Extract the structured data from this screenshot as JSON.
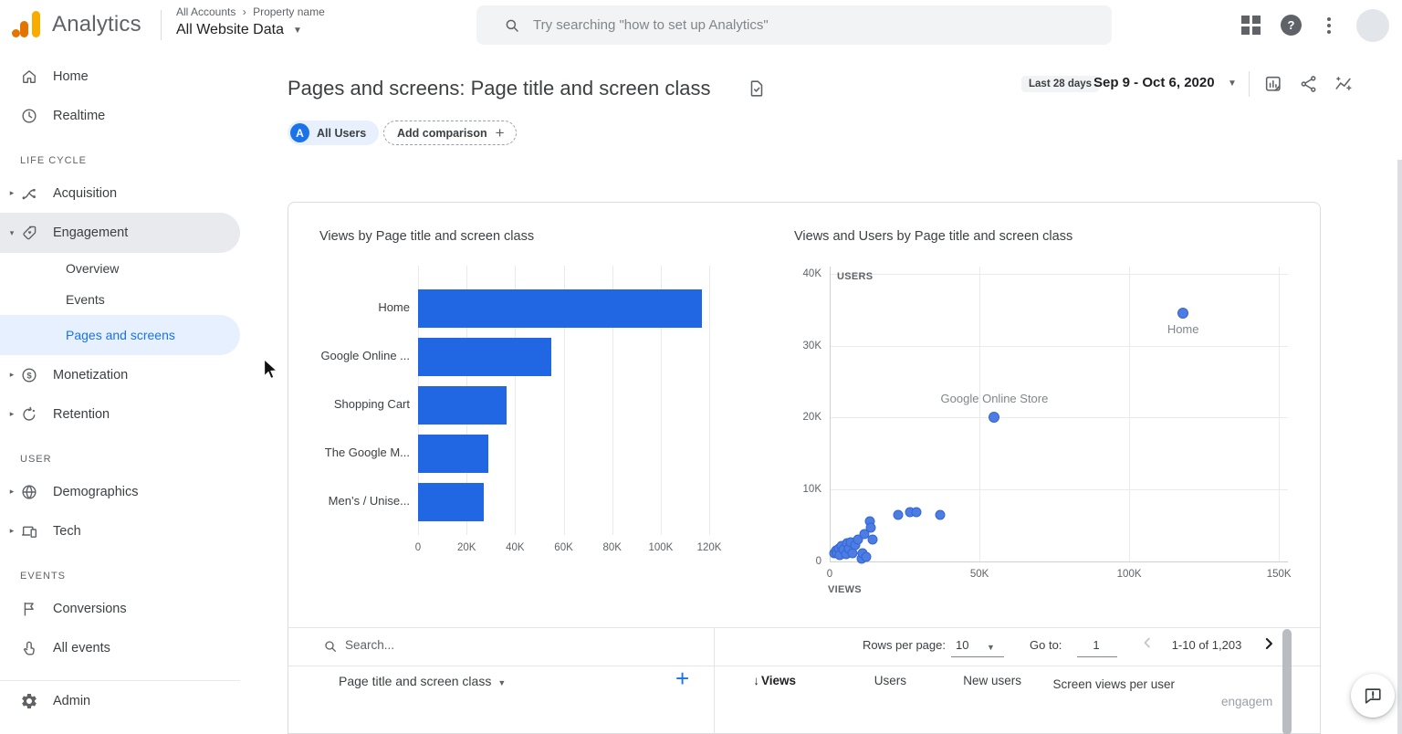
{
  "header": {
    "product": "Analytics",
    "breadcrumb": {
      "account": "All Accounts",
      "separator": "›",
      "property": "Property name"
    },
    "property_selector": "All Website Data",
    "search_placeholder": "Try searching \"how to set up Analytics\""
  },
  "sidebar": {
    "top_items": [
      {
        "label": "Home",
        "icon": "home-icon"
      },
      {
        "label": "Realtime",
        "icon": "clock-icon"
      }
    ],
    "sections": [
      {
        "title": "LIFE CYCLE",
        "items": [
          {
            "label": "Acquisition",
            "icon": "acquisition-icon",
            "arrow": "collapsed"
          },
          {
            "label": "Engagement",
            "icon": "engagement-icon",
            "arrow": "expanded",
            "selected": true,
            "children": [
              {
                "label": "Overview"
              },
              {
                "label": "Events"
              },
              {
                "label": "Pages and screens",
                "selected": true
              }
            ]
          },
          {
            "label": "Monetization",
            "icon": "monetization-icon",
            "arrow": "collapsed"
          },
          {
            "label": "Retention",
            "icon": "retention-icon",
            "arrow": "collapsed"
          }
        ]
      },
      {
        "title": "USER",
        "items": [
          {
            "label": "Demographics",
            "icon": "demographics-icon",
            "arrow": "collapsed"
          },
          {
            "label": "Tech",
            "icon": "tech-icon",
            "arrow": "collapsed"
          }
        ]
      },
      {
        "title": "EVENTS",
        "items": [
          {
            "label": "Conversions",
            "icon": "flag-icon"
          },
          {
            "label": "All events",
            "icon": "touch-icon"
          }
        ]
      }
    ],
    "admin": {
      "label": "Admin",
      "icon": "gear-icon"
    }
  },
  "report": {
    "title": "Pages and screens: Page title and screen class",
    "comparisons": {
      "chip_badge": "A",
      "chip_label": "All Users",
      "add_label": "Add comparison"
    },
    "date": {
      "badge": "Last 28 days",
      "range": "Sep 9 - Oct 6, 2020"
    }
  },
  "chart_data": [
    {
      "type": "bar",
      "orientation": "horizontal",
      "title": "Views by Page title and screen class",
      "categories": [
        "Home",
        "Google Online ...",
        "Shopping Cart",
        "The Google M...",
        "Men’s / Unise..."
      ],
      "values": [
        117000,
        55000,
        36500,
        29000,
        27000
      ],
      "xlabel": "",
      "ylabel": "",
      "xlim": [
        0,
        129000
      ],
      "xticks": [
        {
          "v": 0,
          "label": "0"
        },
        {
          "v": 20000,
          "label": "20K"
        },
        {
          "v": 40000,
          "label": "40K"
        },
        {
          "v": 60000,
          "label": "60K"
        },
        {
          "v": 80000,
          "label": "80K"
        },
        {
          "v": 100000,
          "label": "100K"
        },
        {
          "v": 120000,
          "label": "120K"
        }
      ],
      "grid": true
    },
    {
      "type": "scatter",
      "title": "Views and Users by Page title and screen class",
      "xlabel": "VIEWS",
      "ylabel": "USERS",
      "xlim": [
        0,
        153000
      ],
      "ylim": [
        0,
        41000
      ],
      "xticks": [
        {
          "v": 0,
          "label": "0"
        },
        {
          "v": 50000,
          "label": "50K"
        },
        {
          "v": 100000,
          "label": "100K"
        },
        {
          "v": 150000,
          "label": "150K"
        }
      ],
      "yticks": [
        {
          "v": 0,
          "label": "0"
        },
        {
          "v": 10000,
          "label": "10K"
        },
        {
          "v": 20000,
          "label": "20K"
        },
        {
          "v": 30000,
          "label": "30K"
        },
        {
          "v": 40000,
          "label": "40K"
        }
      ],
      "labeled_points": [
        {
          "label": "Home",
          "x": 118000,
          "y": 34500,
          "label_pos": "below"
        },
        {
          "label": "Google Online Store",
          "x": 55000,
          "y": 20000,
          "label_pos": "above"
        }
      ],
      "points": [
        [
          1500,
          1100
        ],
        [
          2000,
          1500
        ],
        [
          2500,
          1200
        ],
        [
          3000,
          1800
        ],
        [
          3400,
          900
        ],
        [
          4000,
          2100
        ],
        [
          4600,
          1700
        ],
        [
          5500,
          1000
        ],
        [
          5800,
          2500
        ],
        [
          6400,
          1800
        ],
        [
          7000,
          2700
        ],
        [
          7700,
          1200
        ],
        [
          8600,
          2300
        ],
        [
          9500,
          3000
        ],
        [
          10700,
          400
        ],
        [
          11000,
          1200
        ],
        [
          11700,
          3800
        ],
        [
          12300,
          600
        ],
        [
          13500,
          5600
        ],
        [
          13800,
          4700
        ],
        [
          14400,
          3100
        ],
        [
          23000,
          6500
        ],
        [
          26700,
          6800
        ],
        [
          29100,
          6900
        ],
        [
          36800,
          6500
        ]
      ],
      "grid": true,
      "legend": "none"
    }
  ],
  "table": {
    "search_placeholder": "Search...",
    "rows_per_page": {
      "label": "Rows per page:",
      "value": "10"
    },
    "goto": {
      "label": "Go to:",
      "value": "1"
    },
    "pagination_range": "1-10 of 1,203",
    "dimension": "Page title and screen class",
    "columns": [
      {
        "label": "Views",
        "sorted": true
      },
      {
        "label": "Users"
      },
      {
        "label": "New users"
      },
      {
        "label": "Screen views per user",
        "wrap": true
      },
      {
        "label": "engagem",
        "truncated": true
      }
    ]
  },
  "colors": {
    "accent_blue": "#1a73e8",
    "bar_blue": "#2166e3",
    "dot_blue": "#4d7ce2",
    "dot_border": "#3367d6",
    "logo_orange": "#f9ab00",
    "logo_orange_dark": "#e37400"
  }
}
